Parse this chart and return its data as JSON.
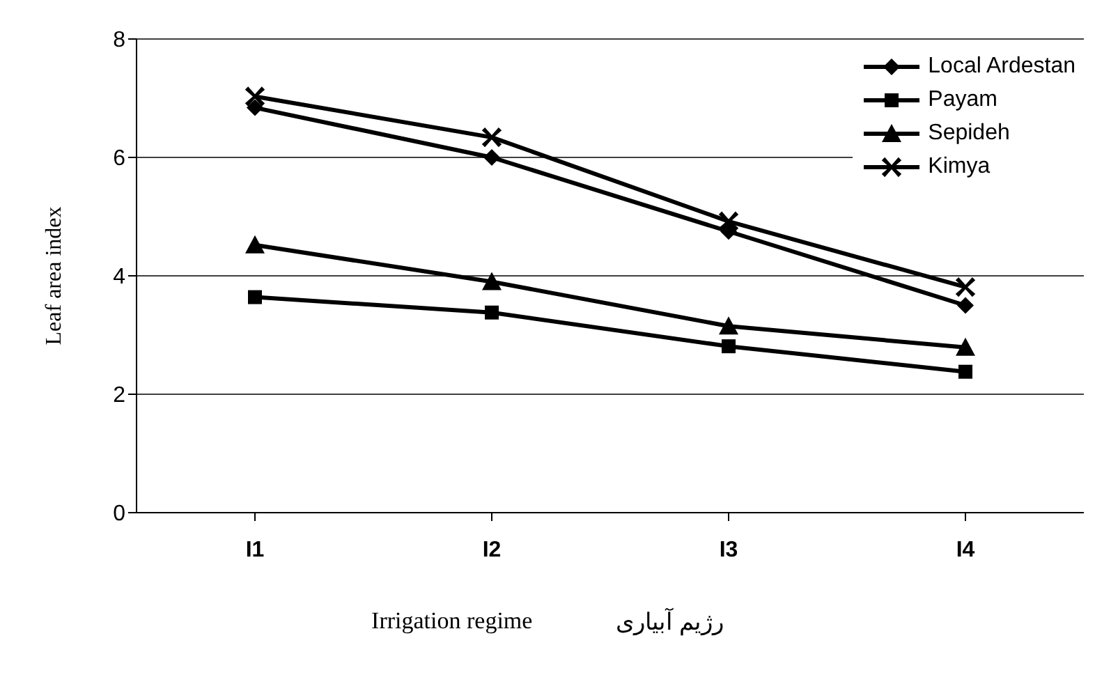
{
  "chart_data": {
    "type": "line",
    "xlabel": "Irrigation regime",
    "ylabel": "Leaf area index",
    "annotations": [
      "رژیم آبیاری"
    ],
    "categories": [
      "I1",
      "I2",
      "I3",
      "I4"
    ],
    "series": [
      {
        "name": "Local Ardestan",
        "color": "#000000",
        "marker": "diamond",
        "values": [
          6.84,
          6.0,
          4.75,
          3.5
        ]
      },
      {
        "name": "Payam",
        "color": "#000000",
        "marker": "square",
        "values": [
          3.64,
          3.38,
          2.81,
          2.38
        ]
      },
      {
        "name": "Sepideh",
        "color": "#000000",
        "marker": "triangle",
        "values": [
          4.52,
          3.9,
          3.15,
          2.79
        ]
      },
      {
        "name": "Kimya",
        "color": "#000000",
        "marker": "cross",
        "values": [
          7.03,
          6.34,
          4.92,
          3.81
        ]
      }
    ],
    "ylim": [
      0,
      8
    ],
    "yticks": [
      0,
      2,
      4,
      6,
      8
    ],
    "grid": "y",
    "legend": "top right",
    "line_style": "solid"
  }
}
